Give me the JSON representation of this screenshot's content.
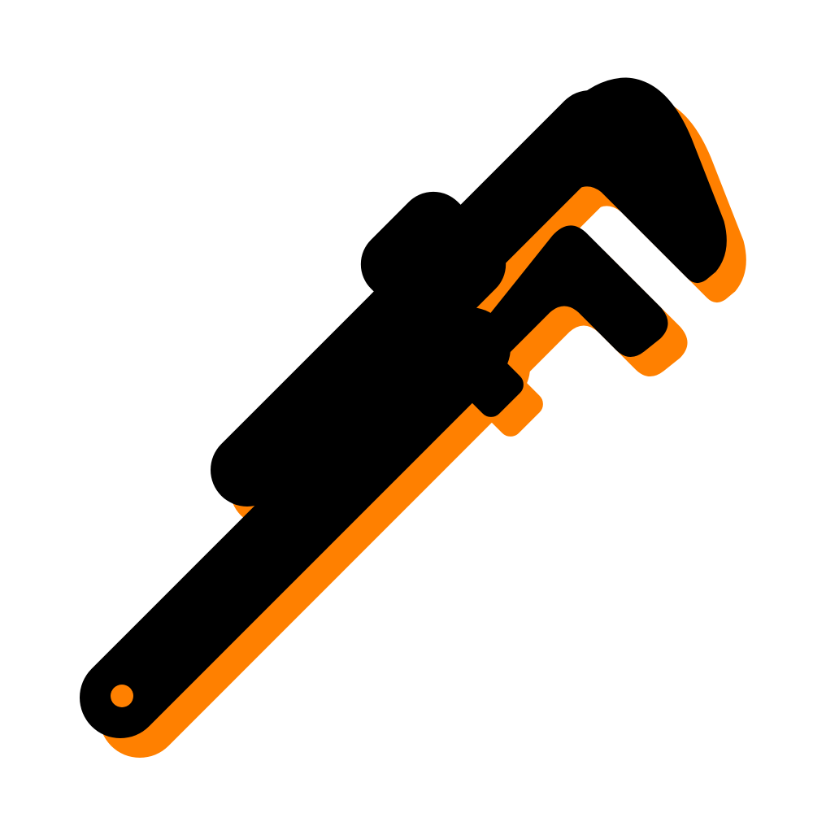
{
  "icon": {
    "name": "pipe-wrench-icon",
    "colors": {
      "fill": "#000000",
      "shadow": "#ff8000",
      "hole": "#ff8000",
      "background": "#ffffff"
    }
  }
}
